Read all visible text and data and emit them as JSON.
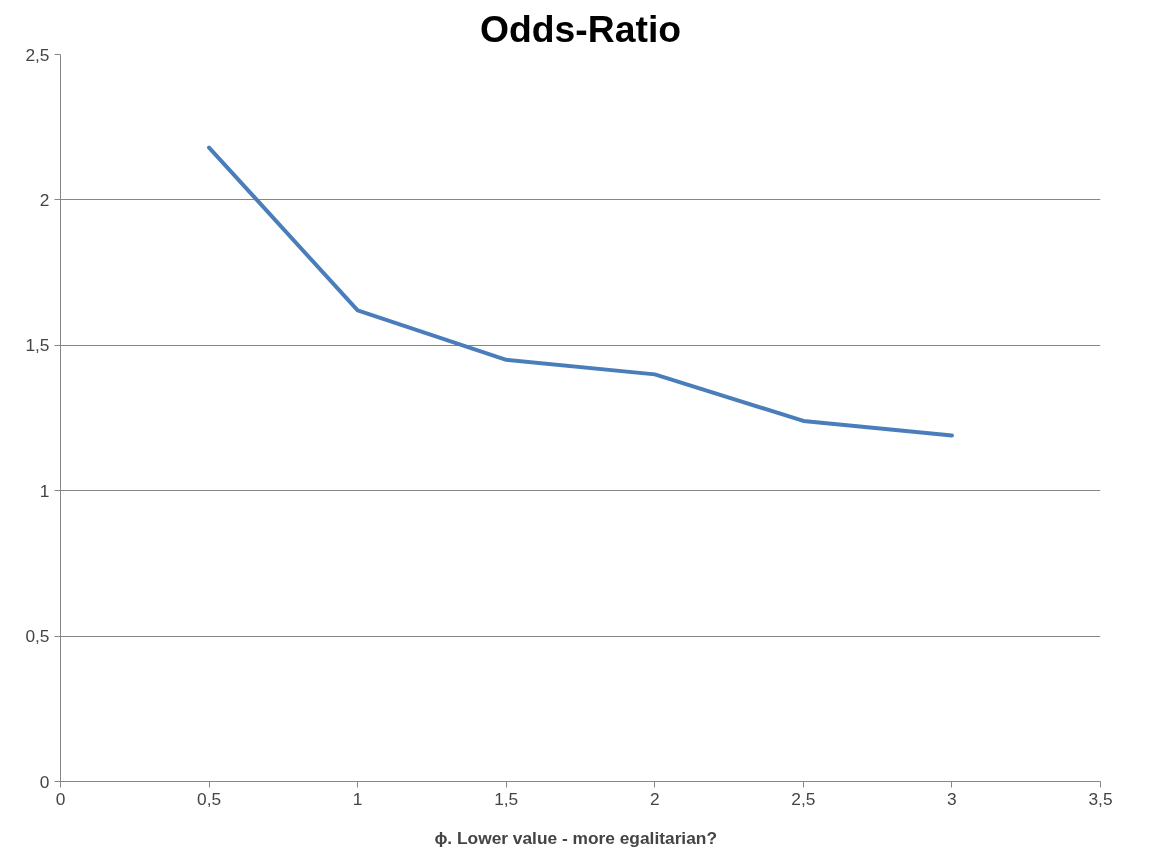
{
  "chart_data": {
    "type": "line",
    "title": "Odds-Ratio",
    "xlabel": "ϕ.   Lower value - more egalitarian?",
    "x": [
      0.5,
      1,
      1.5,
      2,
      2.5,
      3
    ],
    "series": [
      {
        "color": "#4a7ebb",
        "values": [
          2.18,
          1.62,
          1.45,
          1.4,
          1.24,
          1.19
        ]
      }
    ],
    "xlim": [
      0,
      3.5
    ],
    "ylim": [
      0,
      2.5
    ],
    "xticks": [
      0,
      {
        "value": 0.5,
        "label": "0,5"
      },
      1,
      {
        "value": 1.5,
        "label": "1,5"
      },
      2,
      {
        "value": 2.5,
        "label": "2,5"
      },
      3,
      {
        "value": 3.5,
        "label": "3,5"
      }
    ],
    "yticks": [
      0,
      {
        "value": 0.5,
        "label": "0,5"
      },
      1,
      {
        "value": 1.5,
        "label": "1,5"
      },
      2,
      {
        "value": 2.5,
        "label": "2,5"
      }
    ],
    "grid": "y",
    "marker": "none",
    "line_style": "solid"
  }
}
